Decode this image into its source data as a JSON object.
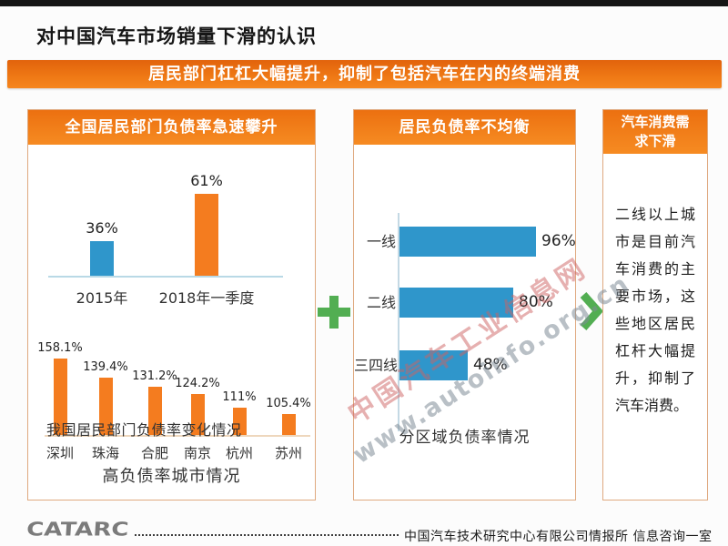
{
  "page_title": "对中国汽车市场销量下滑的认识",
  "banner": {
    "text": "居民部门杠杠大幅提升，抑制了包括汽车在内的终端消费"
  },
  "panels": {
    "left": {
      "header": "全国居民部门负债率急速攀升"
    },
    "middle": {
      "header": "居民负债率不均衡"
    },
    "right": {
      "header": "汽车消费需求下滑",
      "body": "二线以上城市是目前汽车消费的主要市场，这些地区居民杠杆大幅提升，抑制了汽车消费。"
    }
  },
  "chart_data": [
    {
      "id": "national-leverage",
      "type": "bar",
      "title": "我国居民部门负债率变化情况",
      "categories": [
        "2015年",
        "2018年一季度"
      ],
      "values": [
        36,
        61
      ],
      "labels": [
        "36%",
        "61%"
      ],
      "unit": "%",
      "bar_colors": [
        "#2f96cb",
        "#f47c1f"
      ],
      "grid": false,
      "legend": "none"
    },
    {
      "id": "city-leverage",
      "type": "bar",
      "title": "高负债率城市情况",
      "categories": [
        "深圳",
        "珠海",
        "合肥",
        "南京",
        "杭州",
        "苏州"
      ],
      "values": [
        158.1,
        139.4,
        131.2,
        124.2,
        111,
        105.4
      ],
      "labels": [
        "158.1%",
        "139.4%",
        "131.2%",
        "124.2%",
        "111%",
        "105.4%"
      ],
      "unit": "%",
      "bar_color": "#f47c1f",
      "grid": false,
      "legend": "none"
    },
    {
      "id": "region-leverage",
      "type": "bar",
      "orientation": "horizontal",
      "title": "分区域负债率情况",
      "categories": [
        "一线",
        "二线",
        "三四线"
      ],
      "values": [
        96,
        80,
        48
      ],
      "labels": [
        "96%",
        "80%",
        "48%"
      ],
      "unit": "%",
      "bar_color": "#2f96cb",
      "grid": false,
      "legend": "none"
    }
  ],
  "connectors": {
    "plus": "plus-icon",
    "chevron": "chevron-right-icon"
  },
  "watermark": {
    "line1": "中国汽车工业信息网",
    "line2": "www.autoinfo.org.cn"
  },
  "footer": {
    "logo": "CATARC",
    "text": "中国汽车技术研究中心有限公司情报所  信息咨询一室"
  },
  "colors": {
    "orange": "#f47c1f",
    "blue": "#2f96cb",
    "green": "#52ae52",
    "panel_border": "#dfa97f"
  }
}
